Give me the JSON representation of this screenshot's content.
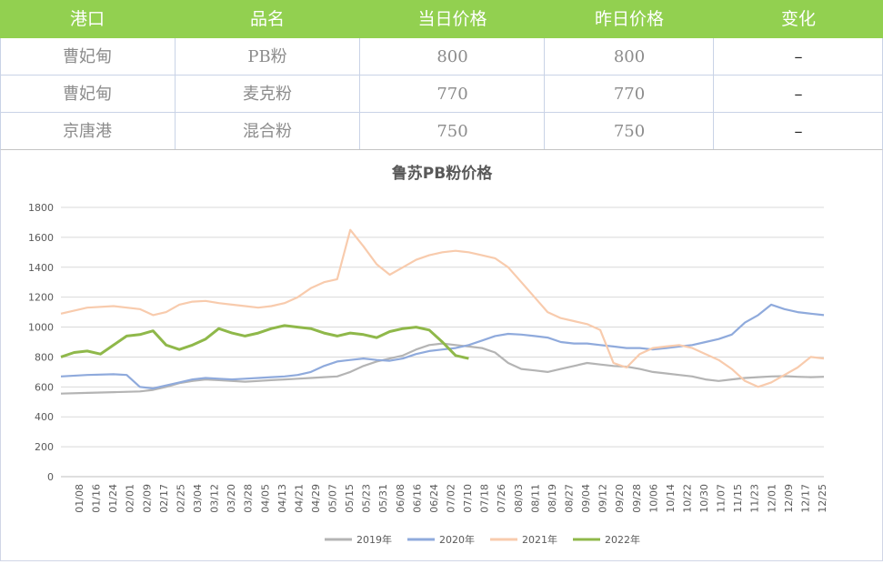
{
  "table": {
    "headers": [
      "港口",
      "品名",
      "当日价格",
      "昨日价格",
      "变化"
    ],
    "rows": [
      [
        "曹妃甸",
        "PB粉",
        "800",
        "800",
        "–"
      ],
      [
        "曹妃甸",
        "麦克粉",
        "770",
        "770",
        "–"
      ],
      [
        "京唐港",
        "混合粉",
        "750",
        "750",
        "–"
      ]
    ]
  },
  "colors": {
    "header_bg": "#92d050",
    "s2019": "#b4b4b4",
    "s2020": "#8faadc",
    "s2021": "#f8cbad",
    "s2022": "#8fb84a"
  },
  "chart_data": {
    "type": "line",
    "title": "鲁苏PB粉价格",
    "ylim": [
      0,
      1800
    ],
    "yticks": [
      0,
      200,
      400,
      600,
      800,
      1000,
      1200,
      1400,
      1600,
      1800
    ],
    "xlabels": [
      "01/08",
      "01/16",
      "01/24",
      "02/01",
      "02/09",
      "02/17",
      "02/25",
      "03/04",
      "03/12",
      "03/20",
      "03/28",
      "04/05",
      "04/13",
      "04/21",
      "04/29",
      "05/07",
      "05/15",
      "05/23",
      "05/31",
      "06/08",
      "06/16",
      "06/24",
      "07/02",
      "07/10",
      "07/18",
      "07/26",
      "08/03",
      "08/11",
      "08/19",
      "08/27",
      "09/04",
      "09/12",
      "09/20",
      "09/28",
      "10/06",
      "10/14",
      "10/22",
      "10/30",
      "11/07",
      "11/15",
      "11/23",
      "12/01",
      "12/09",
      "12/17",
      "12/25"
    ],
    "grid": true,
    "legend_position": "bottom",
    "series": [
      {
        "name": "2019年",
        "color": "#b4b4b4",
        "points": [
          [
            0,
            555
          ],
          [
            2,
            560
          ],
          [
            4,
            565
          ],
          [
            6,
            570
          ],
          [
            7,
            580
          ],
          [
            8,
            600
          ],
          [
            9,
            625
          ],
          [
            10,
            640
          ],
          [
            11,
            650
          ],
          [
            12,
            645
          ],
          [
            13,
            640
          ],
          [
            14,
            635
          ],
          [
            15,
            640
          ],
          [
            16,
            645
          ],
          [
            17,
            650
          ],
          [
            18,
            655
          ],
          [
            19,
            660
          ],
          [
            20,
            665
          ],
          [
            21,
            670
          ],
          [
            22,
            700
          ],
          [
            23,
            740
          ],
          [
            24,
            770
          ],
          [
            25,
            790
          ],
          [
            26,
            810
          ],
          [
            27,
            850
          ],
          [
            28,
            880
          ],
          [
            29,
            890
          ],
          [
            30,
            880
          ],
          [
            31,
            870
          ],
          [
            32,
            860
          ],
          [
            33,
            830
          ],
          [
            34,
            760
          ],
          [
            35,
            720
          ],
          [
            36,
            710
          ],
          [
            37,
            700
          ],
          [
            38,
            720
          ],
          [
            39,
            740
          ],
          [
            40,
            760
          ],
          [
            41,
            750
          ],
          [
            42,
            740
          ],
          [
            43,
            735
          ],
          [
            44,
            720
          ],
          [
            45,
            700
          ],
          [
            46,
            690
          ],
          [
            47,
            680
          ],
          [
            48,
            670
          ],
          [
            49,
            650
          ],
          [
            50,
            640
          ],
          [
            51,
            650
          ],
          [
            52,
            660
          ],
          [
            53,
            665
          ],
          [
            54,
            670
          ],
          [
            55,
            672
          ],
          [
            56,
            668
          ],
          [
            57,
            665
          ],
          [
            58,
            668
          ]
        ]
      },
      {
        "name": "2020年",
        "color": "#8faadc",
        "points": [
          [
            0,
            670
          ],
          [
            2,
            680
          ],
          [
            4,
            685
          ],
          [
            5,
            680
          ],
          [
            6,
            600
          ],
          [
            7,
            590
          ],
          [
            8,
            610
          ],
          [
            9,
            630
          ],
          [
            10,
            650
          ],
          [
            11,
            660
          ],
          [
            12,
            655
          ],
          [
            13,
            650
          ],
          [
            14,
            655
          ],
          [
            15,
            660
          ],
          [
            16,
            665
          ],
          [
            17,
            670
          ],
          [
            18,
            680
          ],
          [
            19,
            700
          ],
          [
            20,
            740
          ],
          [
            21,
            770
          ],
          [
            22,
            780
          ],
          [
            23,
            790
          ],
          [
            24,
            780
          ],
          [
            25,
            775
          ],
          [
            26,
            790
          ],
          [
            27,
            820
          ],
          [
            28,
            840
          ],
          [
            29,
            850
          ],
          [
            30,
            860
          ],
          [
            31,
            880
          ],
          [
            32,
            910
          ],
          [
            33,
            940
          ],
          [
            34,
            955
          ],
          [
            35,
            950
          ],
          [
            36,
            940
          ],
          [
            37,
            930
          ],
          [
            38,
            900
          ],
          [
            39,
            890
          ],
          [
            40,
            890
          ],
          [
            41,
            880
          ],
          [
            42,
            870
          ],
          [
            43,
            860
          ],
          [
            44,
            860
          ],
          [
            45,
            850
          ],
          [
            46,
            860
          ],
          [
            47,
            870
          ],
          [
            48,
            880
          ],
          [
            49,
            900
          ],
          [
            50,
            920
          ],
          [
            51,
            950
          ],
          [
            52,
            1030
          ],
          [
            53,
            1080
          ],
          [
            54,
            1150
          ],
          [
            55,
            1120
          ],
          [
            56,
            1100
          ],
          [
            57,
            1090
          ],
          [
            58,
            1080
          ]
        ]
      },
      {
        "name": "2021年",
        "color": "#f8cbad",
        "points": [
          [
            0,
            1090
          ],
          [
            2,
            1130
          ],
          [
            4,
            1140
          ],
          [
            6,
            1120
          ],
          [
            7,
            1080
          ],
          [
            8,
            1100
          ],
          [
            9,
            1150
          ],
          [
            10,
            1170
          ],
          [
            11,
            1175
          ],
          [
            12,
            1160
          ],
          [
            13,
            1150
          ],
          [
            14,
            1140
          ],
          [
            15,
            1130
          ],
          [
            16,
            1140
          ],
          [
            17,
            1160
          ],
          [
            18,
            1200
          ],
          [
            19,
            1260
          ],
          [
            20,
            1300
          ],
          [
            21,
            1320
          ],
          [
            22,
            1650
          ],
          [
            23,
            1540
          ],
          [
            24,
            1420
          ],
          [
            25,
            1350
          ],
          [
            26,
            1400
          ],
          [
            27,
            1450
          ],
          [
            28,
            1480
          ],
          [
            29,
            1500
          ],
          [
            30,
            1510
          ],
          [
            31,
            1500
          ],
          [
            32,
            1480
          ],
          [
            33,
            1460
          ],
          [
            34,
            1400
          ],
          [
            35,
            1300
          ],
          [
            36,
            1200
          ],
          [
            37,
            1100
          ],
          [
            38,
            1060
          ],
          [
            39,
            1040
          ],
          [
            40,
            1020
          ],
          [
            41,
            980
          ],
          [
            42,
            760
          ],
          [
            43,
            730
          ],
          [
            44,
            820
          ],
          [
            45,
            860
          ],
          [
            46,
            870
          ],
          [
            47,
            880
          ],
          [
            48,
            860
          ],
          [
            49,
            820
          ],
          [
            50,
            780
          ],
          [
            51,
            720
          ],
          [
            52,
            640
          ],
          [
            53,
            600
          ],
          [
            54,
            630
          ],
          [
            55,
            680
          ],
          [
            56,
            730
          ],
          [
            57,
            800
          ],
          [
            58,
            790
          ]
        ]
      },
      {
        "name": "2022年",
        "color": "#8fb84a",
        "points": [
          [
            0,
            800
          ],
          [
            1,
            830
          ],
          [
            2,
            840
          ],
          [
            3,
            820
          ],
          [
            4,
            880
          ],
          [
            5,
            940
          ],
          [
            6,
            950
          ],
          [
            7,
            975
          ],
          [
            8,
            880
          ],
          [
            9,
            850
          ],
          [
            10,
            880
          ],
          [
            11,
            920
          ],
          [
            12,
            990
          ],
          [
            13,
            960
          ],
          [
            14,
            940
          ],
          [
            15,
            960
          ],
          [
            16,
            990
          ],
          [
            17,
            1010
          ],
          [
            18,
            1000
          ],
          [
            19,
            990
          ],
          [
            20,
            960
          ],
          [
            21,
            940
          ],
          [
            22,
            960
          ],
          [
            23,
            950
          ],
          [
            24,
            930
          ],
          [
            25,
            970
          ],
          [
            26,
            990
          ],
          [
            27,
            1000
          ],
          [
            28,
            980
          ],
          [
            29,
            900
          ],
          [
            30,
            810
          ],
          [
            31,
            790
          ]
        ]
      }
    ],
    "legend": [
      "2019年",
      "2020年",
      "2021年",
      "2022年"
    ]
  }
}
